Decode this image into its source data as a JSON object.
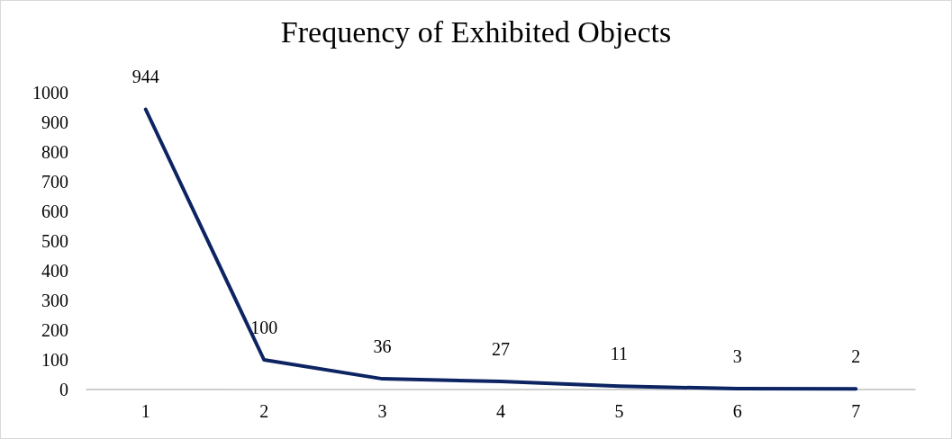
{
  "chart_data": {
    "type": "line",
    "title": "Frequency of Exhibited Objects",
    "categories": [
      "1",
      "2",
      "3",
      "4",
      "5",
      "6",
      "7"
    ],
    "series": [
      {
        "color": "#0d2463",
        "values": [
          944,
          100,
          36,
          27,
          11,
          3,
          2
        ]
      }
    ],
    "ylim": [
      0,
      1000
    ],
    "yticks": [
      0,
      100,
      200,
      300,
      400,
      500,
      600,
      700,
      800,
      900,
      1000
    ],
    "grid": false,
    "data_labels": true,
    "marker": "none",
    "line_style": "solid"
  }
}
